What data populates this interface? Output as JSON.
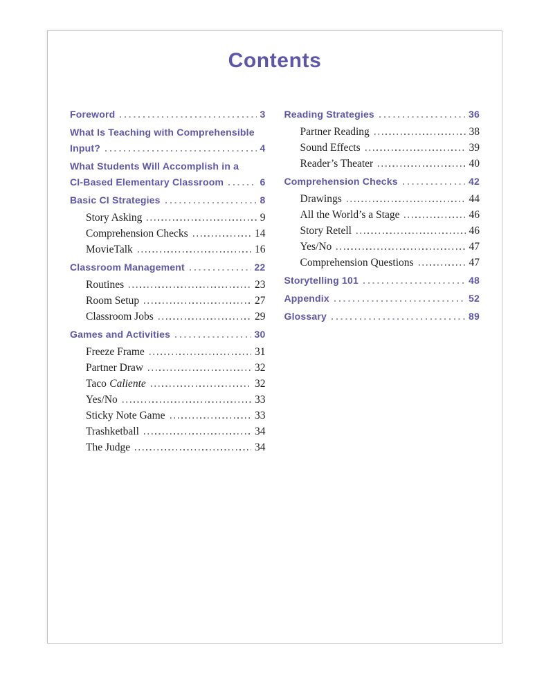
{
  "title": "Contents",
  "colors": {
    "accent": "#5e56a8",
    "text": "#1f1f1f",
    "leader_section": "#9a97a6",
    "leader_sub": "#6e6e6e",
    "page_border": "#c1c1c1"
  },
  "toc": {
    "columns": [
      {
        "entries": [
          {
            "type": "section",
            "lines": [
              "Foreword"
            ],
            "page": "3"
          },
          {
            "type": "section",
            "lines": [
              "What Is Teaching with Comprehensible",
              "Input?"
            ],
            "page": "4"
          },
          {
            "type": "section",
            "lines": [
              "What Students Will Accomplish in a",
              "CI-Based Elementary Classroom"
            ],
            "page": "6"
          },
          {
            "type": "section",
            "lines": [
              "Basic CI Strategies"
            ],
            "page": "8"
          },
          {
            "type": "sub",
            "lines": [
              "Story Asking"
            ],
            "page": "9"
          },
          {
            "type": "sub",
            "lines": [
              "Comprehension Checks"
            ],
            "page": "14"
          },
          {
            "type": "sub",
            "lines": [
              "MovieTalk"
            ],
            "page": "16"
          },
          {
            "type": "section",
            "lines": [
              "Classroom Management"
            ],
            "page": "22"
          },
          {
            "type": "sub",
            "lines": [
              "Routines"
            ],
            "page": "23"
          },
          {
            "type": "sub",
            "lines": [
              "Room Setup"
            ],
            "page": "27"
          },
          {
            "type": "sub",
            "lines": [
              "Classroom Jobs"
            ],
            "page": "29"
          },
          {
            "type": "section",
            "lines": [
              "Games and Activities"
            ],
            "page": "30"
          },
          {
            "type": "sub",
            "lines": [
              "Freeze Frame"
            ],
            "page": "31"
          },
          {
            "type": "sub",
            "lines": [
              "Partner Draw"
            ],
            "page": "32"
          },
          {
            "type": "sub",
            "lines": [
              "Taco"
            ],
            "label_italic": "Caliente",
            "page": "32"
          },
          {
            "type": "sub",
            "lines": [
              "Yes/No"
            ],
            "page": "33"
          },
          {
            "type": "sub",
            "lines": [
              "Sticky Note Game"
            ],
            "page": "33"
          },
          {
            "type": "sub",
            "lines": [
              "Trashketball"
            ],
            "page": "34"
          },
          {
            "type": "sub",
            "lines": [
              "The Judge"
            ],
            "page": "34"
          }
        ]
      },
      {
        "entries": [
          {
            "type": "section",
            "lines": [
              "Reading Strategies"
            ],
            "page": "36"
          },
          {
            "type": "sub",
            "lines": [
              "Partner Reading"
            ],
            "page": "38"
          },
          {
            "type": "sub",
            "lines": [
              "Sound Effects"
            ],
            "page": "39"
          },
          {
            "type": "sub",
            "lines": [
              "Reader’s Theater"
            ],
            "page": "40"
          },
          {
            "type": "section",
            "lines": [
              "Comprehension Checks"
            ],
            "page": "42"
          },
          {
            "type": "sub",
            "lines": [
              "Drawings"
            ],
            "page": "44"
          },
          {
            "type": "sub",
            "lines": [
              "All the World’s a Stage"
            ],
            "page": "46"
          },
          {
            "type": "sub",
            "lines": [
              "Story Retell"
            ],
            "page": "46"
          },
          {
            "type": "sub",
            "lines": [
              "Yes/No"
            ],
            "page": "47"
          },
          {
            "type": "sub",
            "lines": [
              "Comprehension Questions"
            ],
            "page": "47"
          },
          {
            "type": "section",
            "lines": [
              "Storytelling 101"
            ],
            "page": "48"
          },
          {
            "type": "section",
            "lines": [
              "Appendix"
            ],
            "page": "52"
          },
          {
            "type": "section",
            "lines": [
              "Glossary"
            ],
            "page": "89"
          }
        ]
      }
    ]
  }
}
